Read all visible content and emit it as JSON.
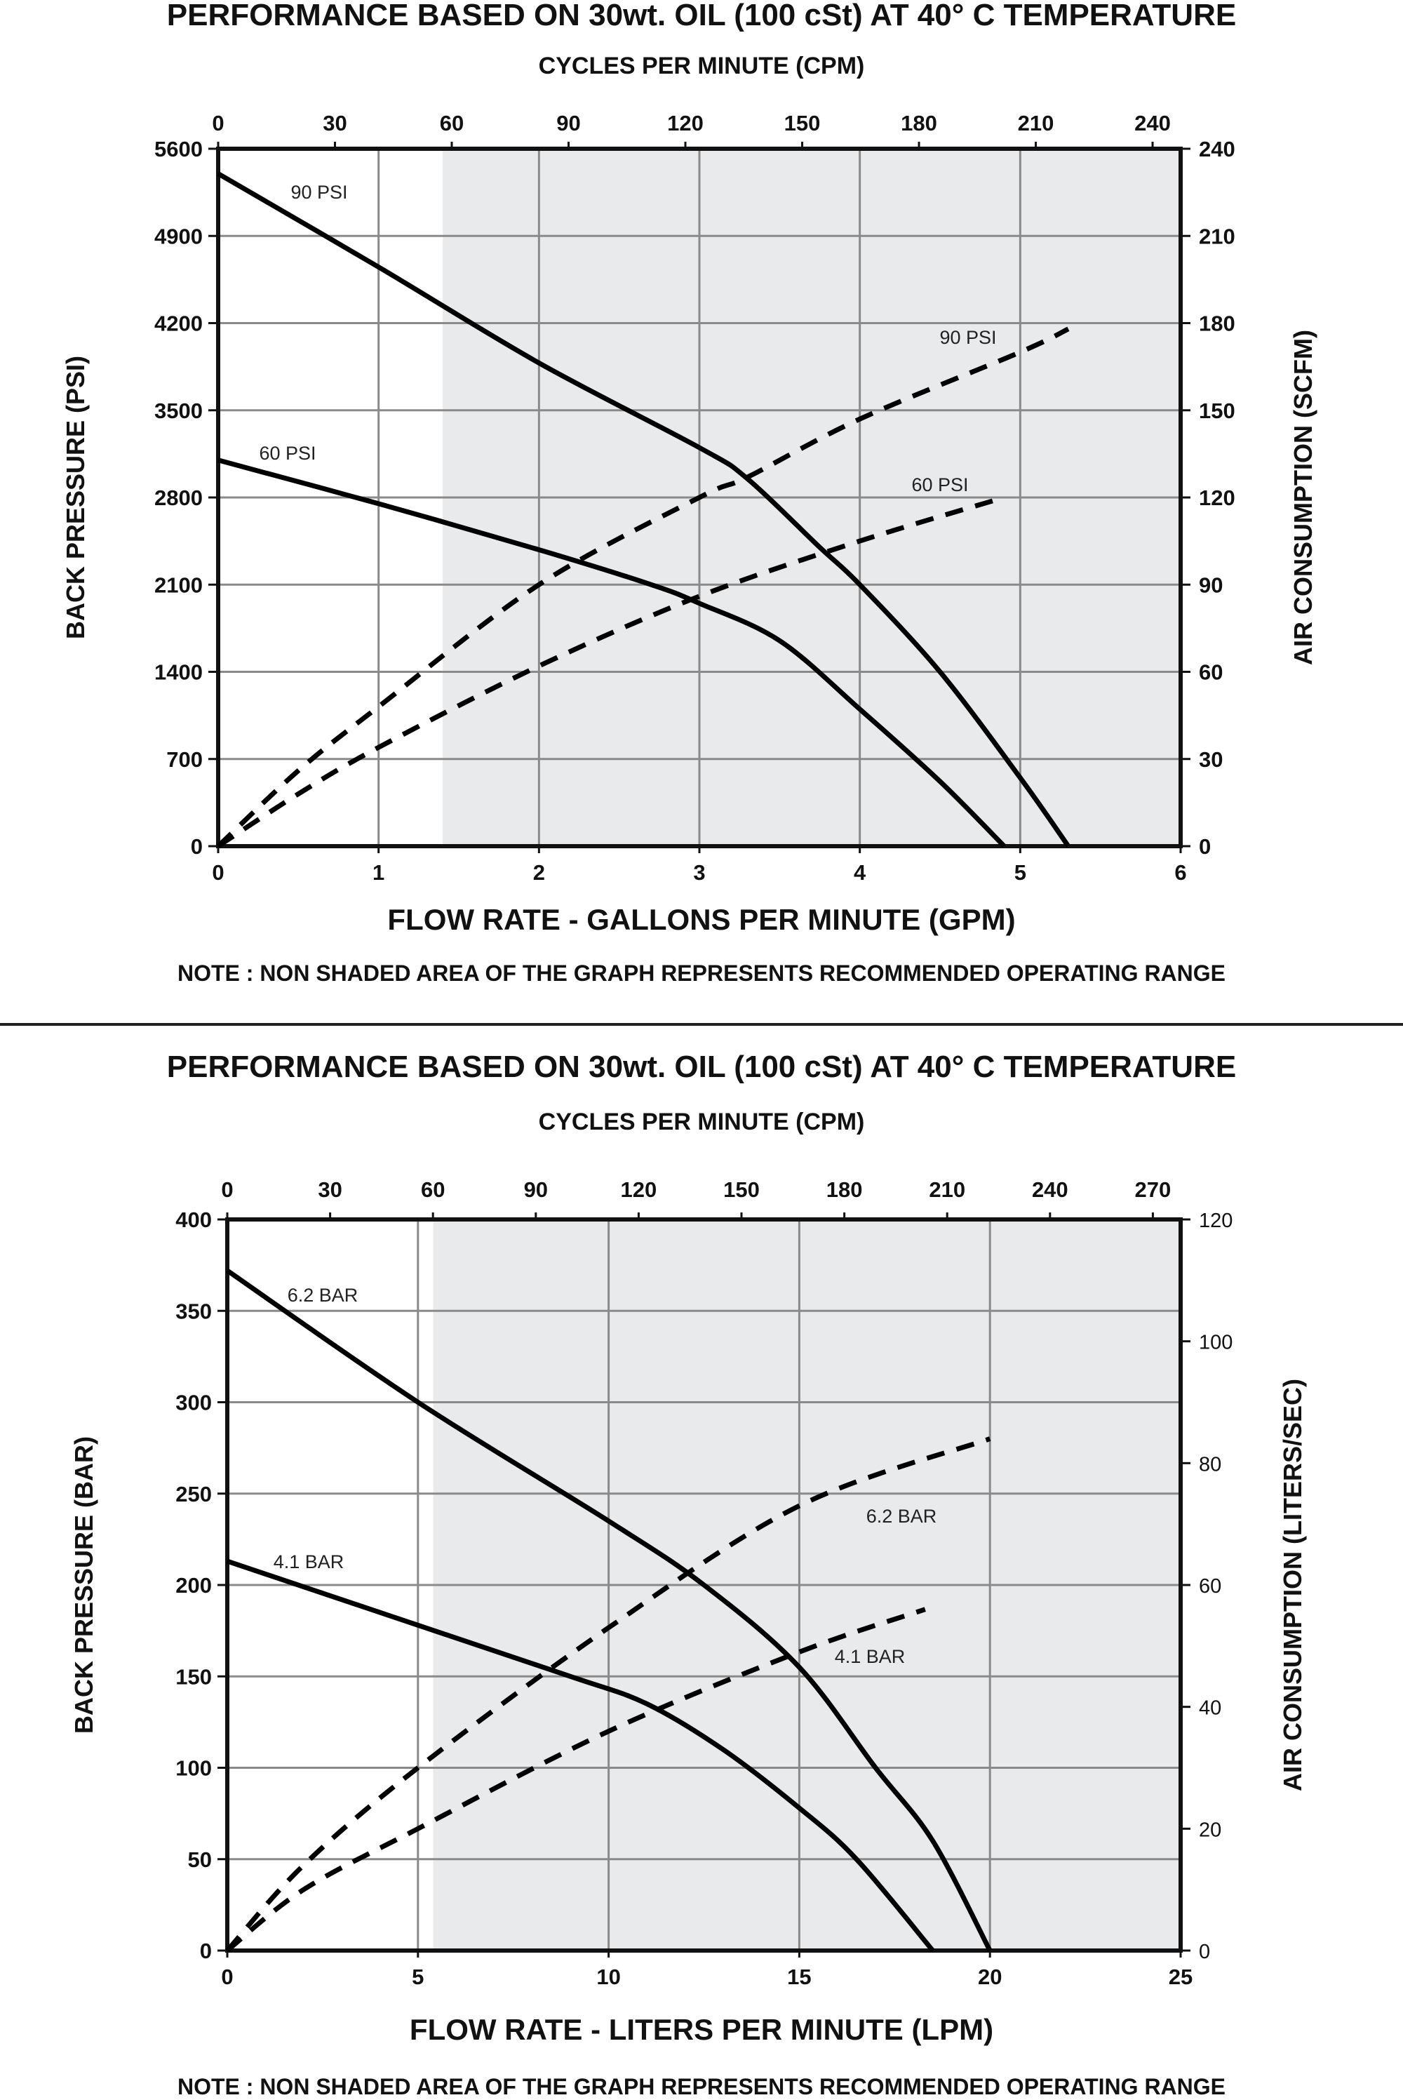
{
  "chart_data": [
    {
      "type": "line",
      "title": "PERFORMANCE  BASED ON 30wt. OIL (100 cSt) AT 40° C TEMPERATURE",
      "top_axis_label": "CYCLES PER MINUTE (CPM)",
      "top_ticks": [
        "0",
        "30",
        "60",
        "90",
        "120",
        "150",
        "180",
        "210",
        "240"
      ],
      "xlabel": "FLOW RATE - GALLONS PER MINUTE (GPM)",
      "ylabel": "BACK PRESSURE  (PSI)",
      "y2label": "AIR CONSUMPTION  (SCFM)",
      "xlim": [
        0,
        6
      ],
      "ylim": [
        0,
        5600
      ],
      "y2lim": [
        0,
        240
      ],
      "x_ticks": [
        "0",
        "1",
        "2",
        "3",
        "4",
        "5",
        "6"
      ],
      "y_ticks": [
        "0",
        "700",
        "1400",
        "2100",
        "2800",
        "3500",
        "4200",
        "4900",
        "5600"
      ],
      "y2_ticks": [
        "0",
        "30",
        "60",
        "90",
        "120",
        "150",
        "180",
        "210",
        "240"
      ],
      "grid": true,
      "recommended_range_x": [
        0,
        1.4
      ],
      "note": "NOTE : NON SHADED AREA OF THE GRAPH REPRESENTS RECOMMENDED OPERATING RANGE",
      "series": [
        {
          "name": "90 PSI",
          "kind": "back-pressure",
          "axis": "left",
          "style": "solid",
          "x": [
            0,
            1,
            2,
            3,
            3.3,
            3.75,
            4,
            4.5,
            5,
            5.3
          ],
          "y": [
            5400,
            4650,
            3880,
            3200,
            2950,
            2400,
            2100,
            1400,
            550,
            0
          ]
        },
        {
          "name": "60 PSI",
          "kind": "back-pressure",
          "axis": "left",
          "style": "solid",
          "x": [
            0,
            1,
            2,
            2.7,
            3,
            3.5,
            4,
            4.5,
            4.9
          ],
          "y": [
            3100,
            2750,
            2380,
            2100,
            1950,
            1650,
            1100,
            520,
            0
          ]
        },
        {
          "name": "90 PSI",
          "kind": "air-consumption",
          "axis": "right",
          "style": "dashed",
          "x": [
            0,
            0.5,
            1,
            2,
            3,
            3.3,
            4,
            5,
            5.3
          ],
          "y": [
            0,
            26,
            48,
            90,
            120,
            127,
            147,
            170,
            178
          ]
        },
        {
          "name": "60 PSI",
          "kind": "air-consumption",
          "axis": "right",
          "style": "dashed",
          "x": [
            0,
            0.5,
            1,
            2,
            3,
            4,
            4.9
          ],
          "y": [
            0,
            18,
            34,
            62,
            86,
            105,
            120
          ]
        }
      ],
      "labels": [
        {
          "text": "90 PSI",
          "series": 0
        },
        {
          "text": "60 PSI",
          "series": 1
        },
        {
          "text": "90 PSI",
          "series": 2
        },
        {
          "text": "60 PSI",
          "series": 3
        }
      ]
    },
    {
      "type": "line",
      "title": "PERFORMANCE  BASED ON 30wt. OIL (100 cSt) AT 40° C TEMPERATURE",
      "top_axis_label": "CYCLES PER MINUTE (CPM)",
      "top_ticks": [
        "0",
        "30",
        "60",
        "90",
        "120",
        "150",
        "180",
        "210",
        "240",
        "270"
      ],
      "xlabel": "FLOW RATE - LITERS PER MINUTE (LPM)",
      "ylabel": "BACK PRESSURE  (BAR)",
      "y2label": "AIR CONSUMPTION  (LITERS/SEC)",
      "xlim": [
        0,
        25
      ],
      "ylim": [
        0,
        400
      ],
      "y2lim": [
        0,
        120
      ],
      "x_ticks": [
        "0",
        "5",
        "10",
        "15",
        "20",
        "25"
      ],
      "y_ticks": [
        "0",
        "50",
        "100",
        "150",
        "200",
        "250",
        "300",
        "350",
        "400"
      ],
      "y2_ticks": [
        "0",
        "20",
        "40",
        "60",
        "80",
        "100",
        "120"
      ],
      "grid": true,
      "recommended_range_x": [
        0,
        5.4
      ],
      "note": "NOTE : NON SHADED AREA OF THE GRAPH REPRESENTS RECOMMENDED OPERATING RANGE",
      "series": [
        {
          "name": "6.2 BAR",
          "kind": "back-pressure",
          "axis": "left",
          "style": "solid",
          "x": [
            0,
            5,
            10,
            12.5,
            15,
            17,
            18.5,
            20
          ],
          "y": [
            372,
            300,
            235,
            200,
            155,
            100,
            60,
            0
          ]
        },
        {
          "name": "4.1 BAR",
          "kind": "back-pressure",
          "axis": "left",
          "style": "solid",
          "x": [
            0,
            5,
            9,
            11,
            13,
            15,
            16.5,
            18.5
          ],
          "y": [
            213,
            178,
            150,
            135,
            110,
            78,
            50,
            0
          ]
        },
        {
          "name": "6.2 BAR",
          "kind": "air-consumption",
          "axis": "right",
          "style": "dashed",
          "x": [
            0,
            2,
            5,
            10,
            15,
            20
          ],
          "y": [
            0,
            14,
            30,
            53,
            73,
            84
          ]
        },
        {
          "name": "4.1 BAR",
          "kind": "air-consumption",
          "axis": "right",
          "style": "dashed",
          "x": [
            0,
            2,
            5,
            10,
            15,
            18.3
          ],
          "y": [
            0,
            10,
            20,
            36,
            49,
            56
          ]
        }
      ],
      "labels": [
        {
          "text": "6.2 BAR",
          "series": 0
        },
        {
          "text": "4.1 BAR",
          "series": 1
        },
        {
          "text": "6.2  BAR",
          "series": 2
        },
        {
          "text": "4.1 BAR",
          "series": 3
        }
      ]
    }
  ]
}
